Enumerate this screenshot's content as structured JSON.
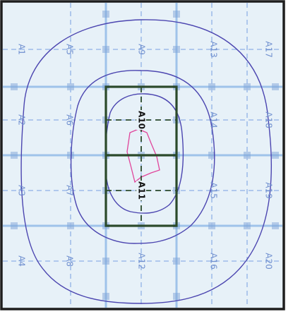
{
  "colors": {
    "background": "#e7f1f8",
    "frame": "#1e1e1e",
    "grid_dashed": "#8fb1e6",
    "grid_solid": "#9fc3ea",
    "contour": "#4b45b0",
    "inner_contour": "#e0459b",
    "box": "#2b4a2b"
  },
  "labels": [
    {
      "text": "A1",
      "col": 0,
      "row": 0
    },
    {
      "text": "A2",
      "col": 0,
      "row": 1
    },
    {
      "text": "A3",
      "col": 0,
      "row": 2
    },
    {
      "text": "A4",
      "col": 0,
      "row": 3
    },
    {
      "text": "A5",
      "col": 1,
      "row": 0
    },
    {
      "text": "A6",
      "col": 1,
      "row": 1
    },
    {
      "text": "A7",
      "col": 1,
      "row": 2
    },
    {
      "text": "A8",
      "col": 1,
      "row": 3
    },
    {
      "text": "A9",
      "col": 2,
      "row": 0
    },
    {
      "text": "A10",
      "col": 2,
      "row": 1,
      "bold": true
    },
    {
      "text": "A11",
      "col": 2,
      "row": 2,
      "bold": true
    },
    {
      "text": "A12",
      "col": 2,
      "row": 3
    },
    {
      "text": "A13",
      "col": 3,
      "row": 0
    },
    {
      "text": "A14",
      "col": 3,
      "row": 1
    },
    {
      "text": "A15",
      "col": 3,
      "row": 2
    },
    {
      "text": "A16",
      "col": 3,
      "row": 3
    },
    {
      "text": "A17",
      "col": 4,
      "row": 0
    },
    {
      "text": "A18",
      "col": 4,
      "row": 1
    },
    {
      "text": "A19",
      "col": 4,
      "row": 2
    },
    {
      "text": "A20",
      "col": 4,
      "row": 3
    }
  ]
}
